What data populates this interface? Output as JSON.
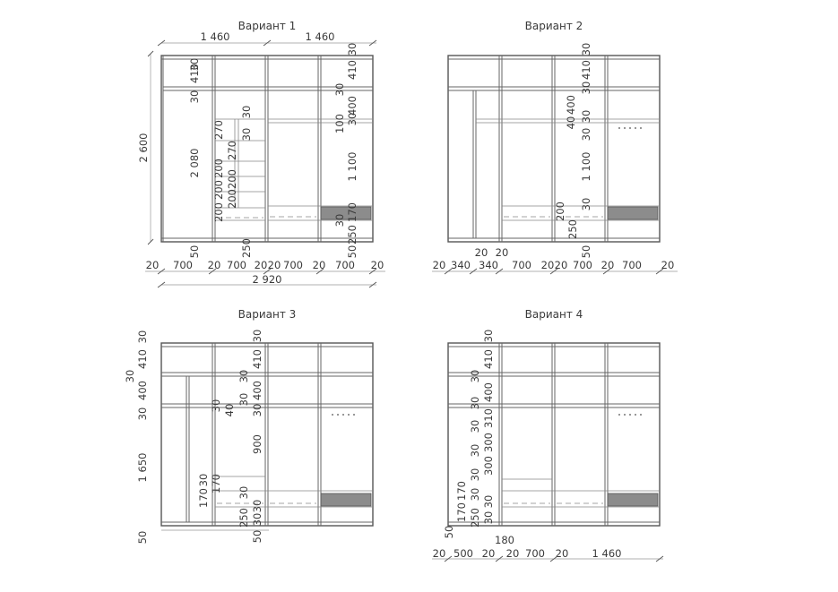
{
  "variants": [
    {
      "title": "Вариант 1",
      "top_dims": [
        "1 460",
        "1 460"
      ],
      "left_height": "2 600",
      "bottom_dims": [
        "20",
        "700",
        "20",
        "700",
        "20",
        "20",
        "700",
        "20",
        "700",
        "20"
      ],
      "total_width": "2 920",
      "internal": [
        "30",
        "410",
        "30",
        "2 080",
        "50",
        "270",
        "200",
        "200",
        "200",
        "30",
        "270",
        "30",
        "250",
        "200",
        "200",
        "30",
        "410",
        "30",
        "400",
        "30",
        "100",
        "1 100",
        "170",
        "30",
        "250",
        "50"
      ]
    },
    {
      "title": "Вариант 2",
      "bottom_dims": [
        "20",
        "340",
        "340",
        "700",
        "20",
        "20",
        "700",
        "20",
        "700",
        "20"
      ],
      "section_dims": [
        "20",
        "20"
      ],
      "internal": [
        "30",
        "410",
        "30",
        "40",
        "400",
        "30",
        "30",
        "1 100",
        "30",
        "200",
        "250",
        "50"
      ]
    },
    {
      "title": "Вариант 3",
      "left_dims": [
        "30",
        "410",
        "30",
        "400",
        "30",
        "1 650",
        "50"
      ],
      "internal": [
        "30",
        "410",
        "30",
        "400",
        "30",
        "30",
        "40",
        "30",
        "900",
        "30",
        "170",
        "30",
        "170",
        "30",
        "250",
        "30",
        "50"
      ]
    },
    {
      "title": "Вариант 4",
      "bottom_dims": [
        "20",
        "500",
        "20",
        "20",
        "700",
        "20",
        "1 460"
      ],
      "section_dims": [
        "180"
      ],
      "internal": [
        "30",
        "410",
        "30",
        "400",
        "30",
        "310",
        "30",
        "300",
        "30",
        "300",
        "30",
        "170",
        "170",
        "30",
        "30",
        "250",
        "30",
        "50"
      ]
    }
  ]
}
